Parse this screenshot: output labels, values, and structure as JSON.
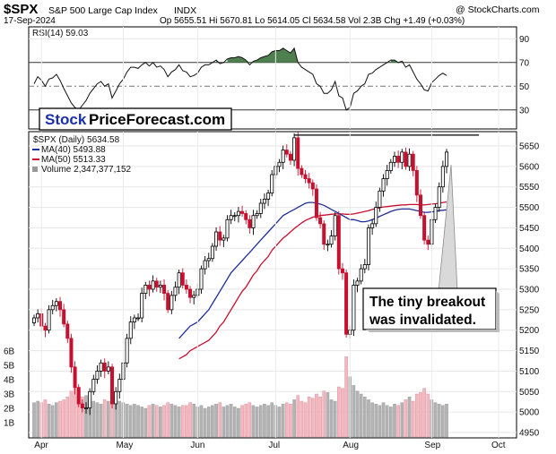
{
  "header": {
    "ticker": "$SPX",
    "name": "S&P 500 Large Cap Index",
    "exchange": "INDX",
    "date": "17-Sep-2024",
    "ohlc": "Op 5655.51  Hi 5670.81  Lo 5614.05  Cl 5634.58  Vol 2.3B  Chg +1.49 (+0.03%)",
    "copyright": "@ StockCharts.com"
  },
  "rsi_panel": {
    "label": "RSI(14) 59.03",
    "ticks": [
      90,
      70,
      50,
      30
    ],
    "overbought": 70,
    "midline": 50,
    "oversold": 30
  },
  "brand": {
    "part1": "Stock",
    "part2": "PriceForecast.com"
  },
  "legend": {
    "price": "$SPX (Daily) 5634.58",
    "ma40": "MA(40) 5493.88",
    "ma50": "MA(50) 5513.33",
    "volume": "Volume 2,347,377,152"
  },
  "annotation": {
    "line1": "The tiny breakout",
    "line2": "was invalidated."
  },
  "colors": {
    "up": "#ffffff",
    "down": "#c8102e",
    "ma40": "#1f2f9a",
    "ma50": "#c8102e",
    "rsi_fill": "#4a7a4a",
    "vol_up": "#b3b3b3",
    "vol_down": "#f2b8c0"
  },
  "chart_data": {
    "type": "candlestick",
    "x_labels": [
      "Apr",
      "May",
      "Jun",
      "Jul",
      "Aug",
      "Sep",
      "Oct"
    ],
    "y_ticks": [
      5650,
      5600,
      5550,
      5500,
      5450,
      5400,
      5350,
      5300,
      5250,
      5200,
      5150,
      5100,
      5050,
      5000,
      4950
    ],
    "ylim": [
      4940,
      5690
    ],
    "volume_ticks": [
      "6B",
      "5B",
      "4B",
      "3B",
      "2B",
      "1B"
    ],
    "resistance_level": 5670,
    "close": [
      5230,
      5240,
      5210,
      5200,
      5250,
      5260,
      5270,
      5250,
      5215,
      5180,
      5110,
      5060,
      5020,
      5010,
      5010,
      5050,
      5080,
      5100,
      5120,
      5100,
      5110,
      5020,
      5050,
      5080,
      5120,
      5180,
      5220,
      5230,
      5230,
      5290,
      5310,
      5300,
      5320,
      5305,
      5310,
      5290,
      5250,
      5285,
      5305,
      5340,
      5310,
      5300,
      5280,
      5285,
      5300,
      5350,
      5370,
      5375,
      5405,
      5440,
      5420,
      5425,
      5470,
      5480,
      5480,
      5490,
      5485,
      5470,
      5450,
      5480,
      5485,
      5510,
      5520,
      5535,
      5580,
      5600,
      5610,
      5640,
      5630,
      5615,
      5670,
      5595,
      5580,
      5570,
      5560,
      5545,
      5475,
      5460,
      5410,
      5410,
      5430,
      5480,
      5350,
      5340,
      5190,
      5200,
      5310,
      5320,
      5350,
      5360,
      5450,
      5460,
      5500,
      5540,
      5570,
      5590,
      5610,
      5625,
      5610,
      5635,
      5600,
      5630,
      5590,
      5530,
      5480,
      5420,
      5410,
      5470,
      5500,
      5550,
      5600,
      5635
    ],
    "ma40": [
      null,
      null,
      null,
      null,
      null,
      null,
      null,
      null,
      null,
      null,
      null,
      null,
      null,
      null,
      null,
      null,
      null,
      null,
      null,
      null,
      null,
      null,
      null,
      null,
      null,
      null,
      null,
      null,
      null,
      null,
      null,
      null,
      null,
      null,
      null,
      null,
      null,
      null,
      null,
      5180,
      5190,
      5200,
      5210,
      5215,
      5220,
      5230,
      5240,
      5250,
      5265,
      5280,
      5295,
      5310,
      5325,
      5340,
      5350,
      5360,
      5370,
      5380,
      5390,
      5400,
      5410,
      5420,
      5430,
      5440,
      5450,
      5460,
      5470,
      5480,
      5485,
      5490,
      5495,
      5500,
      5505,
      5510,
      5512,
      5512,
      5510,
      5508,
      5505,
      5500,
      5495,
      5490,
      5485,
      5480,
      5475,
      5470,
      5470,
      5468,
      5465,
      5465,
      5467,
      5470,
      5474,
      5478,
      5482,
      5486,
      5490,
      5493,
      5495,
      5496,
      5496,
      5496,
      5494,
      5492,
      5490,
      5488,
      5488,
      5489,
      5490,
      5492,
      5493,
      5494
    ],
    "ma50": [
      null,
      null,
      null,
      null,
      null,
      null,
      null,
      null,
      null,
      null,
      null,
      null,
      null,
      null,
      null,
      null,
      null,
      null,
      null,
      null,
      null,
      null,
      null,
      null,
      null,
      null,
      null,
      null,
      null,
      null,
      null,
      null,
      null,
      null,
      null,
      null,
      null,
      null,
      null,
      5130,
      5135,
      5140,
      5150,
      5155,
      5160,
      5165,
      5170,
      5175,
      5185,
      5195,
      5210,
      5220,
      5235,
      5250,
      5265,
      5280,
      5295,
      5305,
      5320,
      5335,
      5345,
      5360,
      5370,
      5380,
      5395,
      5405,
      5415,
      5425,
      5432,
      5440,
      5448,
      5455,
      5462,
      5468,
      5472,
      5476,
      5478,
      5480,
      5481,
      5482,
      5483,
      5484,
      5484,
      5484,
      5483,
      5483,
      5484,
      5486,
      5488,
      5490,
      5492,
      5495,
      5497,
      5499,
      5501,
      5502,
      5503,
      5504,
      5505,
      5506,
      5506,
      5507,
      5507,
      5507,
      5506,
      5506,
      5507,
      5508,
      5509,
      5510,
      5512,
      5513
    ],
    "volume": [
      2.4,
      2.5,
      2.4,
      2.6,
      2.3,
      2.2,
      2.4,
      2.5,
      2.6,
      2.8,
      3.2,
      3.4,
      3.0,
      2.8,
      2.9,
      2.7,
      2.5,
      2.4,
      2.3,
      2.6,
      2.5,
      3.1,
      2.8,
      2.5,
      2.4,
      2.3,
      2.2,
      2.3,
      2.2,
      2.1,
      2.0,
      2.2,
      2.3,
      2.2,
      2.1,
      2.2,
      2.4,
      2.3,
      2.2,
      2.1,
      2.2,
      2.2,
      2.4,
      2.3,
      2.1,
      2.2,
      2.0,
      2.1,
      2.2,
      2.3,
      2.4,
      2.1,
      2.2,
      2.3,
      2.1,
      2.0,
      2.2,
      2.3,
      2.4,
      2.2,
      2.1,
      2.2,
      2.3,
      2.2,
      2.4,
      2.2,
      2.1,
      2.3,
      2.4,
      2.3,
      2.6,
      2.9,
      2.5,
      2.4,
      2.8,
      2.7,
      3.0,
      2.8,
      3.2,
      3.1,
      2.6,
      2.5,
      3.5,
      3.4,
      5.6,
      4.2,
      3.6,
      3.2,
      3.0,
      2.8,
      2.6,
      2.4,
      2.3,
      2.2,
      2.4,
      2.2,
      2.1,
      2.3,
      2.2,
      2.4,
      2.6,
      2.8,
      2.5,
      3.0,
      3.1,
      3.4,
      3.0,
      2.6,
      2.4,
      2.3,
      2.2,
      2.3
    ],
    "rsi": [
      52,
      58,
      55,
      50,
      56,
      57,
      60,
      55,
      48,
      42,
      36,
      32,
      30,
      34,
      38,
      44,
      48,
      52,
      54,
      50,
      52,
      40,
      46,
      52,
      56,
      62,
      66,
      66,
      65,
      68,
      70,
      67,
      70,
      66,
      67,
      64,
      58,
      62,
      64,
      68,
      63,
      62,
      58,
      59,
      61,
      66,
      68,
      68,
      70,
      72,
      69,
      70,
      73,
      74,
      74,
      75,
      74,
      72,
      68,
      71,
      72,
      74,
      75,
      76,
      79,
      80,
      80,
      82,
      80,
      78,
      82,
      70,
      66,
      64,
      62,
      60,
      52,
      50,
      44,
      44,
      47,
      54,
      42,
      40,
      30,
      32,
      44,
      46,
      50,
      52,
      60,
      61,
      64,
      66,
      68,
      70,
      72,
      72,
      70,
      71,
      66,
      68,
      62,
      56,
      52,
      47,
      46,
      53,
      56,
      59,
      61,
      59
    ]
  }
}
